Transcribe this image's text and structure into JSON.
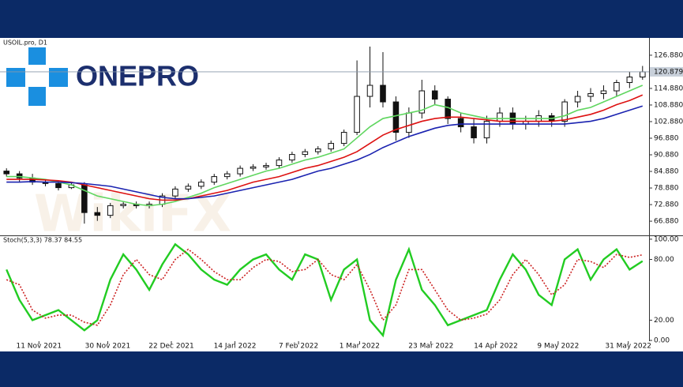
{
  "logo": "ONEPRO",
  "watermark": "WikiFX",
  "chart_data": [
    {
      "type": "candlestick",
      "title": "USOIL.pro, D1",
      "x": [
        0,
        1,
        2,
        3,
        4,
        5,
        6,
        7,
        8,
        9,
        10,
        11,
        12,
        13,
        14,
        15,
        16,
        17,
        18,
        19,
        20,
        21,
        22,
        23,
        24,
        25,
        26,
        27,
        28,
        29,
        30,
        31,
        32,
        33,
        34,
        35,
        36,
        37,
        38,
        39,
        40,
        41,
        42,
        43,
        44,
        45,
        46,
        47,
        48,
        49
      ],
      "open": [
        85,
        84,
        82.5,
        81,
        80.5,
        79,
        80,
        70,
        69,
        72.5,
        73,
        72.5,
        73,
        76,
        78.5,
        79.5,
        81,
        83,
        84,
        86,
        86.5,
        87,
        89,
        91,
        92,
        93,
        95,
        99,
        112,
        116,
        110,
        99,
        106,
        114,
        111,
        104,
        101,
        97,
        103,
        106,
        102,
        103,
        105,
        103,
        110,
        112,
        113,
        114,
        117,
        119
      ],
      "high": [
        86,
        85,
        84,
        82,
        81.5,
        81,
        81,
        72,
        73.5,
        74,
        74,
        74,
        77,
        79.5,
        80.5,
        82,
        84,
        85,
        87,
        87.5,
        88,
        90,
        92,
        93,
        94,
        96,
        100,
        125,
        130,
        128,
        112,
        108,
        118,
        116,
        112,
        106,
        104,
        105,
        108,
        108,
        105,
        107,
        106,
        111,
        114,
        115,
        116,
        118,
        121,
        123
      ],
      "low": [
        83,
        81,
        80,
        79.5,
        78,
        78.5,
        66,
        67,
        68,
        71.5,
        71.5,
        71.5,
        72,
        75,
        77.5,
        78.5,
        80,
        82,
        83,
        85,
        85.5,
        86,
        88,
        90,
        91,
        92,
        94,
        98,
        108,
        108,
        96,
        97,
        104,
        109,
        102,
        99,
        95,
        95,
        101,
        100,
        100,
        101,
        101,
        101,
        108,
        110,
        111,
        112,
        115,
        118
      ],
      "close": [
        84,
        82.5,
        81,
        80.5,
        79,
        80,
        70,
        69,
        72.5,
        73,
        72.5,
        73,
        76,
        78.5,
        79.5,
        81,
        83,
        84,
        86,
        86.5,
        87,
        89,
        91,
        92,
        93,
        95,
        99,
        112,
        116,
        110,
        99,
        106,
        114,
        111,
        104,
        101,
        97,
        103,
        106,
        102,
        103,
        105,
        103,
        110,
        112,
        113,
        114,
        117,
        119,
        120.879
      ],
      "series": [
        {
          "color": "#5fd65f",
          "values": [
            83,
            83,
            82.5,
            82,
            81,
            80,
            78,
            76,
            75,
            74,
            73,
            72.5,
            73,
            74,
            75.5,
            77,
            79,
            80.5,
            82,
            83.5,
            85,
            86,
            87.5,
            89,
            90,
            91.5,
            93,
            97,
            101,
            104,
            105,
            106,
            107,
            109,
            108,
            106,
            105,
            104,
            104,
            104,
            104,
            104,
            104,
            105,
            107,
            108,
            110,
            112,
            114,
            116
          ]
        },
        {
          "color": "#dd1111",
          "values": [
            82,
            82,
            82,
            81.8,
            81.5,
            81,
            80,
            79,
            78,
            77,
            76,
            75,
            74.5,
            74.5,
            75,
            76,
            77,
            78,
            79.5,
            81,
            82,
            83,
            84.5,
            86,
            87,
            88.5,
            90,
            92,
            95,
            98,
            100,
            101.5,
            103,
            104,
            104.5,
            104.5,
            104,
            103.5,
            103,
            103,
            103,
            103,
            103,
            103.5,
            104.5,
            105.5,
            107,
            109,
            110.5,
            112.5
          ]
        },
        {
          "color": "#1a22b0",
          "values": [
            81,
            81,
            81.2,
            81,
            81,
            80.8,
            80.5,
            80,
            79.5,
            78.5,
            77.5,
            76.5,
            75.5,
            75,
            75,
            75.5,
            76,
            77,
            78,
            79,
            80,
            81,
            82,
            83.5,
            85,
            86,
            87.5,
            89,
            91,
            93.5,
            95.5,
            97.5,
            99,
            100.5,
            101.5,
            102,
            102,
            102,
            102,
            102,
            102,
            102,
            102,
            102,
            102.5,
            103,
            104,
            105.5,
            107,
            108.5
          ]
        }
      ],
      "last_price": {
        "value": 120.879,
        "label": "120.879"
      },
      "xlim": [
        -0.5,
        49.5
      ],
      "ylim": [
        61.76,
        132.85
      ],
      "yticks": [
        {
          "value": 66.88,
          "label": "66.880"
        },
        {
          "value": 72.88,
          "label": "72.880"
        },
        {
          "value": 78.88,
          "label": "78.880"
        },
        {
          "value": 84.88,
          "label": "84.880"
        },
        {
          "value": 90.88,
          "label": "90.880"
        },
        {
          "value": 96.88,
          "label": "96.880"
        },
        {
          "value": 102.88,
          "label": "102.880"
        },
        {
          "value": 108.88,
          "label": "108.880"
        },
        {
          "value": 114.88,
          "label": "114.880"
        },
        {
          "value": 126.88,
          "label": "126.880"
        }
      ]
    },
    {
      "type": "line",
      "title": "Stoch(5,3,3) 78.37 84.55",
      "x": [
        0,
        1,
        2,
        3,
        4,
        5,
        6,
        7,
        8,
        9,
        10,
        11,
        12,
        13,
        14,
        15,
        16,
        17,
        18,
        19,
        20,
        21,
        22,
        23,
        24,
        25,
        26,
        27,
        28,
        29,
        30,
        31,
        32,
        33,
        34,
        35,
        36,
        37,
        38,
        39,
        40,
        41,
        42,
        43,
        44,
        45,
        46,
        47,
        48,
        49
      ],
      "series": [
        {
          "color": "#22cc22",
          "values": [
            70,
            40,
            20,
            25,
            30,
            20,
            10,
            20,
            60,
            85,
            70,
            50,
            75,
            95,
            85,
            70,
            60,
            55,
            70,
            80,
            85,
            70,
            60,
            85,
            80,
            40,
            70,
            80,
            20,
            5,
            60,
            90,
            50,
            35,
            15,
            20,
            25,
            30,
            60,
            85,
            70,
            45,
            35,
            80,
            90,
            60,
            80,
            90,
            70,
            78.37
          ]
        },
        {
          "color": "#cc2222",
          "dashed": true,
          "values": [
            60,
            55,
            30,
            22,
            25,
            25,
            18,
            15,
            35,
            65,
            80,
            65,
            60,
            80,
            90,
            80,
            68,
            60,
            60,
            72,
            80,
            78,
            68,
            70,
            80,
            65,
            60,
            75,
            50,
            20,
            35,
            70,
            70,
            50,
            30,
            20,
            22,
            26,
            40,
            65,
            80,
            65,
            45,
            55,
            80,
            78,
            72,
            85,
            82,
            84.55
          ]
        }
      ],
      "xlim": [
        -0.5,
        49.5
      ],
      "ylim": [
        -7,
        103
      ],
      "yticks": [
        {
          "value": 0,
          "label": "0.00"
        },
        {
          "value": 20,
          "label": "20.00"
        },
        {
          "value": 80,
          "label": "80.00"
        },
        {
          "value": 100,
          "label": "100.00"
        }
      ],
      "xticks": [
        {
          "value": 2.5,
          "label": "11 Nov 2021"
        },
        {
          "value": 7.8,
          "label": "30 Nov 2021"
        },
        {
          "value": 12.7,
          "label": "22 Dec 2021"
        },
        {
          "value": 17.6,
          "label": "14 Jan 2022"
        },
        {
          "value": 22.5,
          "label": "7 Feb 2022"
        },
        {
          "value": 27.2,
          "label": "1 Mar 2022"
        },
        {
          "value": 32.7,
          "label": "23 Mar 2022"
        },
        {
          "value": 37.7,
          "label": "14 Apr 2022"
        },
        {
          "value": 42.5,
          "label": "9 May 2022"
        },
        {
          "value": 47.9,
          "label": "31 May 2022"
        }
      ]
    }
  ]
}
